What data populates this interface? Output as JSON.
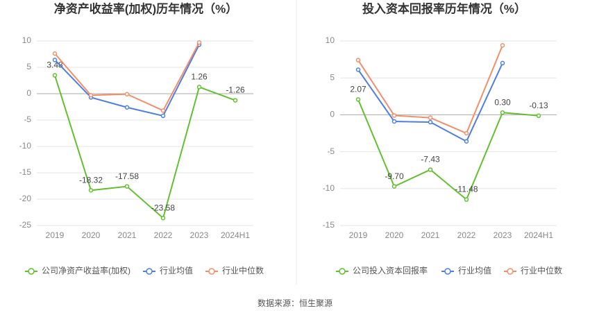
{
  "chart_data": [
    {
      "type": "line",
      "title": "净资产收益率(加权)历年情况（%）",
      "categories": [
        "2019",
        "2020",
        "2021",
        "2022",
        "2023",
        "2024H1"
      ],
      "series": [
        {
          "name": "公司净资产收益率(加权)",
          "color": "#62c02f",
          "values": [
            3.48,
            -18.32,
            -17.58,
            -23.58,
            1.26,
            -1.26
          ],
          "value_labels": [
            "3.48",
            "-18.32",
            "-17.58",
            "-23.58",
            "1.26",
            "-1.26"
          ]
        },
        {
          "name": "行业均值",
          "color": "#4d7fe0",
          "values": [
            6.4,
            -0.7,
            -2.6,
            -4.2,
            9.3,
            null
          ]
        },
        {
          "name": "行业中位数",
          "color": "#f28e6a",
          "values": [
            7.6,
            -0.3,
            -0.1,
            -3.2,
            9.7,
            null
          ]
        }
      ],
      "ylim": [
        -25,
        10
      ],
      "yticks": [
        -25,
        -20,
        -15,
        -10,
        -5,
        0,
        5,
        10
      ],
      "grid": true
    },
    {
      "type": "line",
      "title": "投入资本回报率历年情况（%）",
      "categories": [
        "2019",
        "2020",
        "2021",
        "2022",
        "2023",
        "2024H1"
      ],
      "series": [
        {
          "name": "公司投入资本回报率",
          "color": "#62c02f",
          "values": [
            2.07,
            -9.7,
            -7.43,
            -11.48,
            0.3,
            -0.13
          ],
          "value_labels": [
            "2.07",
            "-9.70",
            "-7.43",
            "-11.48",
            "0.30",
            "-0.13"
          ]
        },
        {
          "name": "行业均值",
          "color": "#4d7fe0",
          "values": [
            6.1,
            -0.9,
            -1.0,
            -3.6,
            7.0,
            null
          ]
        },
        {
          "name": "行业中位数",
          "color": "#f28e6a",
          "values": [
            7.4,
            -0.1,
            -0.4,
            -2.5,
            9.4,
            null
          ]
        }
      ],
      "ylim": [
        -15,
        10
      ],
      "yticks": [
        -15,
        -10,
        -5,
        0,
        5,
        10
      ],
      "grid": true
    }
  ],
  "source": "数据来源：恒生聚源"
}
